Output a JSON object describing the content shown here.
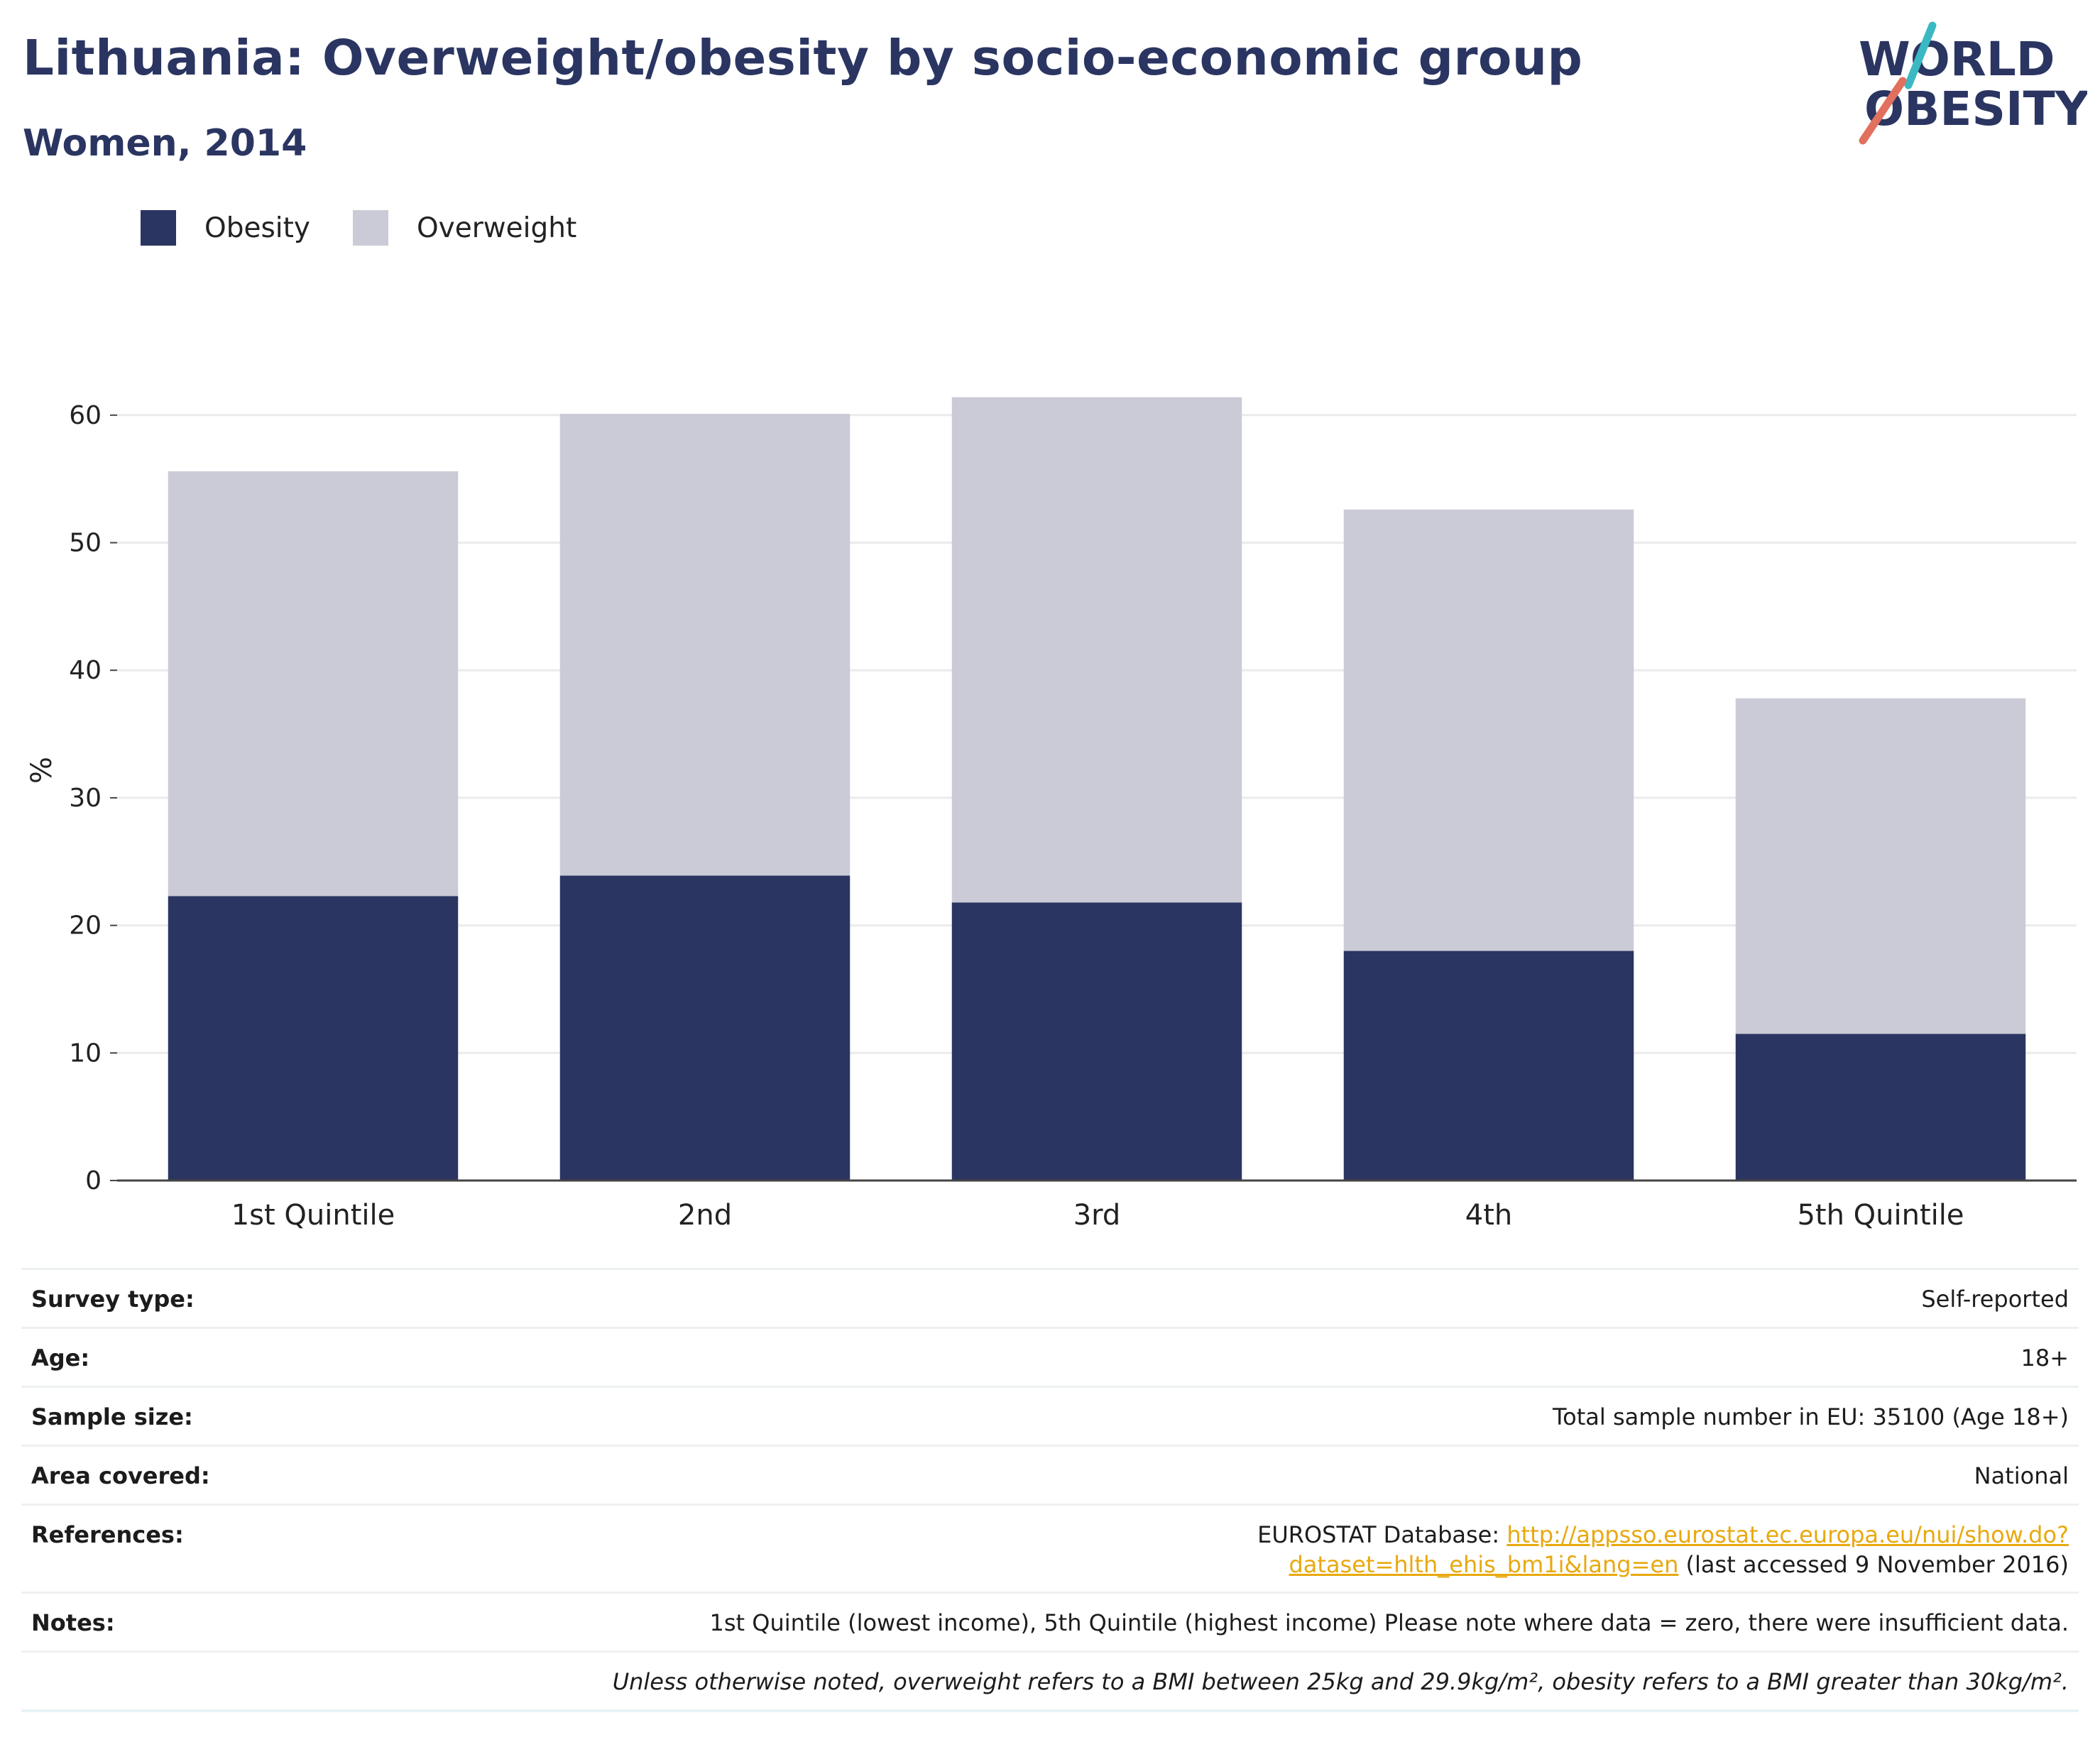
{
  "title": "Lithuania: Overweight/obesity by socio-economic group",
  "subtitle": "Women, 2014",
  "logo": {
    "line1": "WORLD",
    "line2": "OBESITY"
  },
  "colors": {
    "obesity": "#2b3562",
    "overweight": "#cacbd6",
    "title": "#2b3562",
    "logo_teal": "#3bb9c3",
    "logo_red": "#e2705f",
    "link": "#e8a90f",
    "grid": "#ebebeb",
    "axis": "#444444"
  },
  "legend": [
    {
      "name": "Obesity",
      "color": "#2b3562"
    },
    {
      "name": "Overweight",
      "color": "#cacbd6"
    }
  ],
  "chart_data": {
    "type": "bar",
    "stacked": true,
    "categories": [
      "1st Quintile",
      "2nd",
      "3rd",
      "4th",
      "5th Quintile"
    ],
    "series": [
      {
        "name": "Obesity",
        "values": [
          22.3,
          23.9,
          21.8,
          18.0,
          11.5
        ]
      },
      {
        "name": "Overweight",
        "values": [
          33.3,
          36.2,
          39.6,
          34.6,
          26.3
        ]
      }
    ],
    "totals": [
      55.6,
      60.1,
      61.4,
      52.6,
      37.8
    ],
    "xlabel": "",
    "ylabel": "%",
    "ylim": [
      0,
      65
    ],
    "yticks": [
      0,
      10,
      20,
      30,
      40,
      50,
      60
    ],
    "grid": true,
    "legend_position": "top-left"
  },
  "info": {
    "survey_type": {
      "label": "Survey type:",
      "value": "Self-reported"
    },
    "age": {
      "label": "Age:",
      "value": "18+"
    },
    "sample_size": {
      "label": "Sample size:",
      "value": "Total sample number in EU: 35100 (Age 18+)"
    },
    "area_covered": {
      "label": "Area covered:",
      "value": "National"
    },
    "references": {
      "label": "References:",
      "prefix": "EUROSTAT Database: ",
      "link": "http://appsso.eurostat.ec.europa.eu/nui/show.do?dataset=hlth_ehis_bm1i&lang=en",
      "suffix": " (last accessed 9 November 2016)"
    },
    "notes": {
      "label": "Notes:",
      "value": "1st Quintile (lowest income), 5th Quintile (highest income) Please note where data = zero, there were insufficient data."
    },
    "bmi_note": "Unless otherwise noted, overweight refers to a BMI between 25kg and 29.9kg/m², obesity refers to a BMI greater than 30kg/m²."
  }
}
